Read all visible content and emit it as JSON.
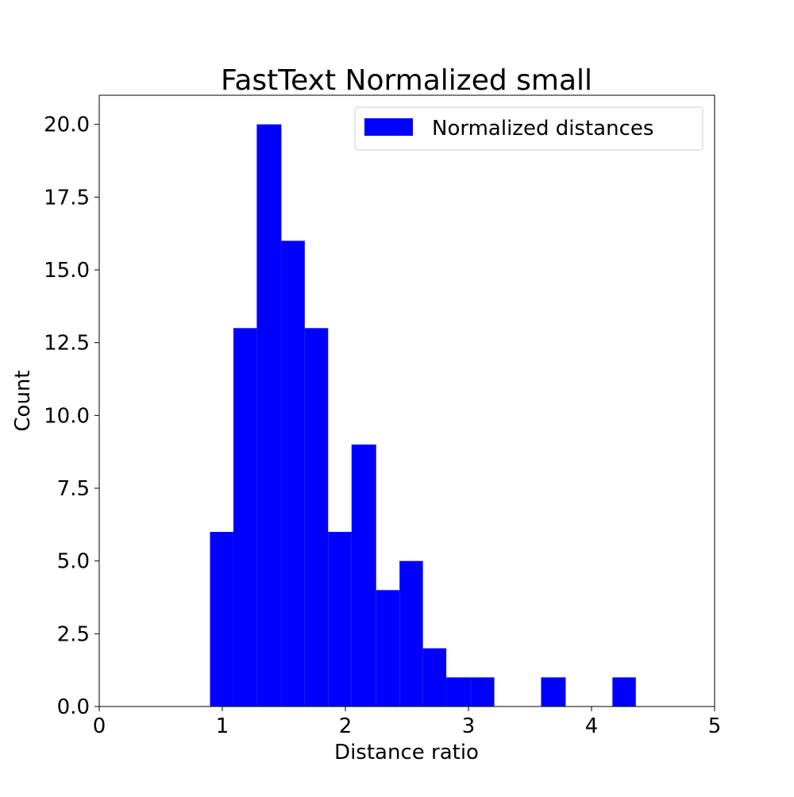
{
  "chart_data": {
    "type": "bar",
    "title": "FastText Normalized small",
    "xlabel": "Distance ratio",
    "ylabel": "Count",
    "xlim": [
      0,
      5
    ],
    "ylim": [
      0,
      21
    ],
    "x_ticks": [
      "0",
      "1",
      "2",
      "3",
      "4",
      "5"
    ],
    "y_ticks": [
      "0.0",
      "2.5",
      "5.0",
      "7.5",
      "10.0",
      "12.5",
      "15.0",
      "17.5",
      "20.0"
    ],
    "grid": false,
    "legend_position": "top-right",
    "bar_color": "#0000ff",
    "series": [
      {
        "name": "Normalized distances",
        "bins": [
          {
            "x0": 0.9,
            "x1": 1.09,
            "count": 6
          },
          {
            "x0": 1.09,
            "x1": 1.28,
            "count": 13
          },
          {
            "x0": 1.28,
            "x1": 1.48,
            "count": 20
          },
          {
            "x0": 1.48,
            "x1": 1.67,
            "count": 16
          },
          {
            "x0": 1.67,
            "x1": 1.86,
            "count": 13
          },
          {
            "x0": 1.86,
            "x1": 2.05,
            "count": 6
          },
          {
            "x0": 2.05,
            "x1": 2.25,
            "count": 9
          },
          {
            "x0": 2.25,
            "x1": 2.44,
            "count": 4
          },
          {
            "x0": 2.44,
            "x1": 2.63,
            "count": 5
          },
          {
            "x0": 2.63,
            "x1": 2.82,
            "count": 2
          },
          {
            "x0": 2.82,
            "x1": 3.02,
            "count": 1
          },
          {
            "x0": 3.02,
            "x1": 3.21,
            "count": 1
          },
          {
            "x0": 3.21,
            "x1": 3.4,
            "count": 0
          },
          {
            "x0": 3.4,
            "x1": 3.59,
            "count": 0
          },
          {
            "x0": 3.59,
            "x1": 3.79,
            "count": 1
          },
          {
            "x0": 3.79,
            "x1": 3.98,
            "count": 0
          },
          {
            "x0": 3.98,
            "x1": 4.17,
            "count": 0
          },
          {
            "x0": 4.17,
            "x1": 4.36,
            "count": 1
          }
        ]
      }
    ]
  }
}
